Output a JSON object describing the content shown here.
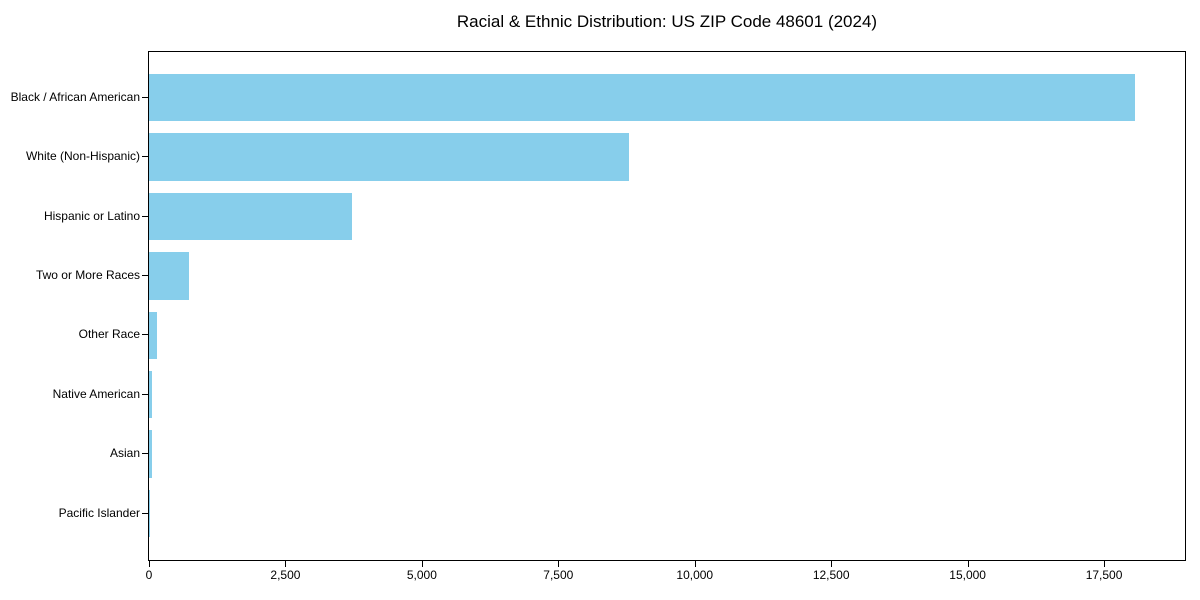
{
  "chart_data": {
    "type": "bar",
    "orientation": "horizontal",
    "title": "Racial & Ethnic Distribution: US ZIP Code 48601 (2024)",
    "categories": [
      "Black / African American",
      "White (Non-Hispanic)",
      "Hispanic or Latino",
      "Two or More Races",
      "Other Race",
      "Native American",
      "Asian",
      "Pacific Islander"
    ],
    "values": [
      18070,
      8800,
      3715,
      740,
      150,
      60,
      55,
      8
    ],
    "xlabel": "",
    "ylabel": "",
    "xlim": [
      0,
      18983
    ],
    "x_ticks": [
      0,
      2500,
      5000,
      7500,
      10000,
      12500,
      15000,
      17500
    ],
    "x_tick_labels": [
      "0",
      "2,500",
      "5,000",
      "7,500",
      "10,000",
      "12,500",
      "15,000",
      "17,500"
    ],
    "bar_color": "#87CEEB",
    "background_color": "#ffffff",
    "axis_color": "#000000",
    "grid": false,
    "legend": null
  }
}
